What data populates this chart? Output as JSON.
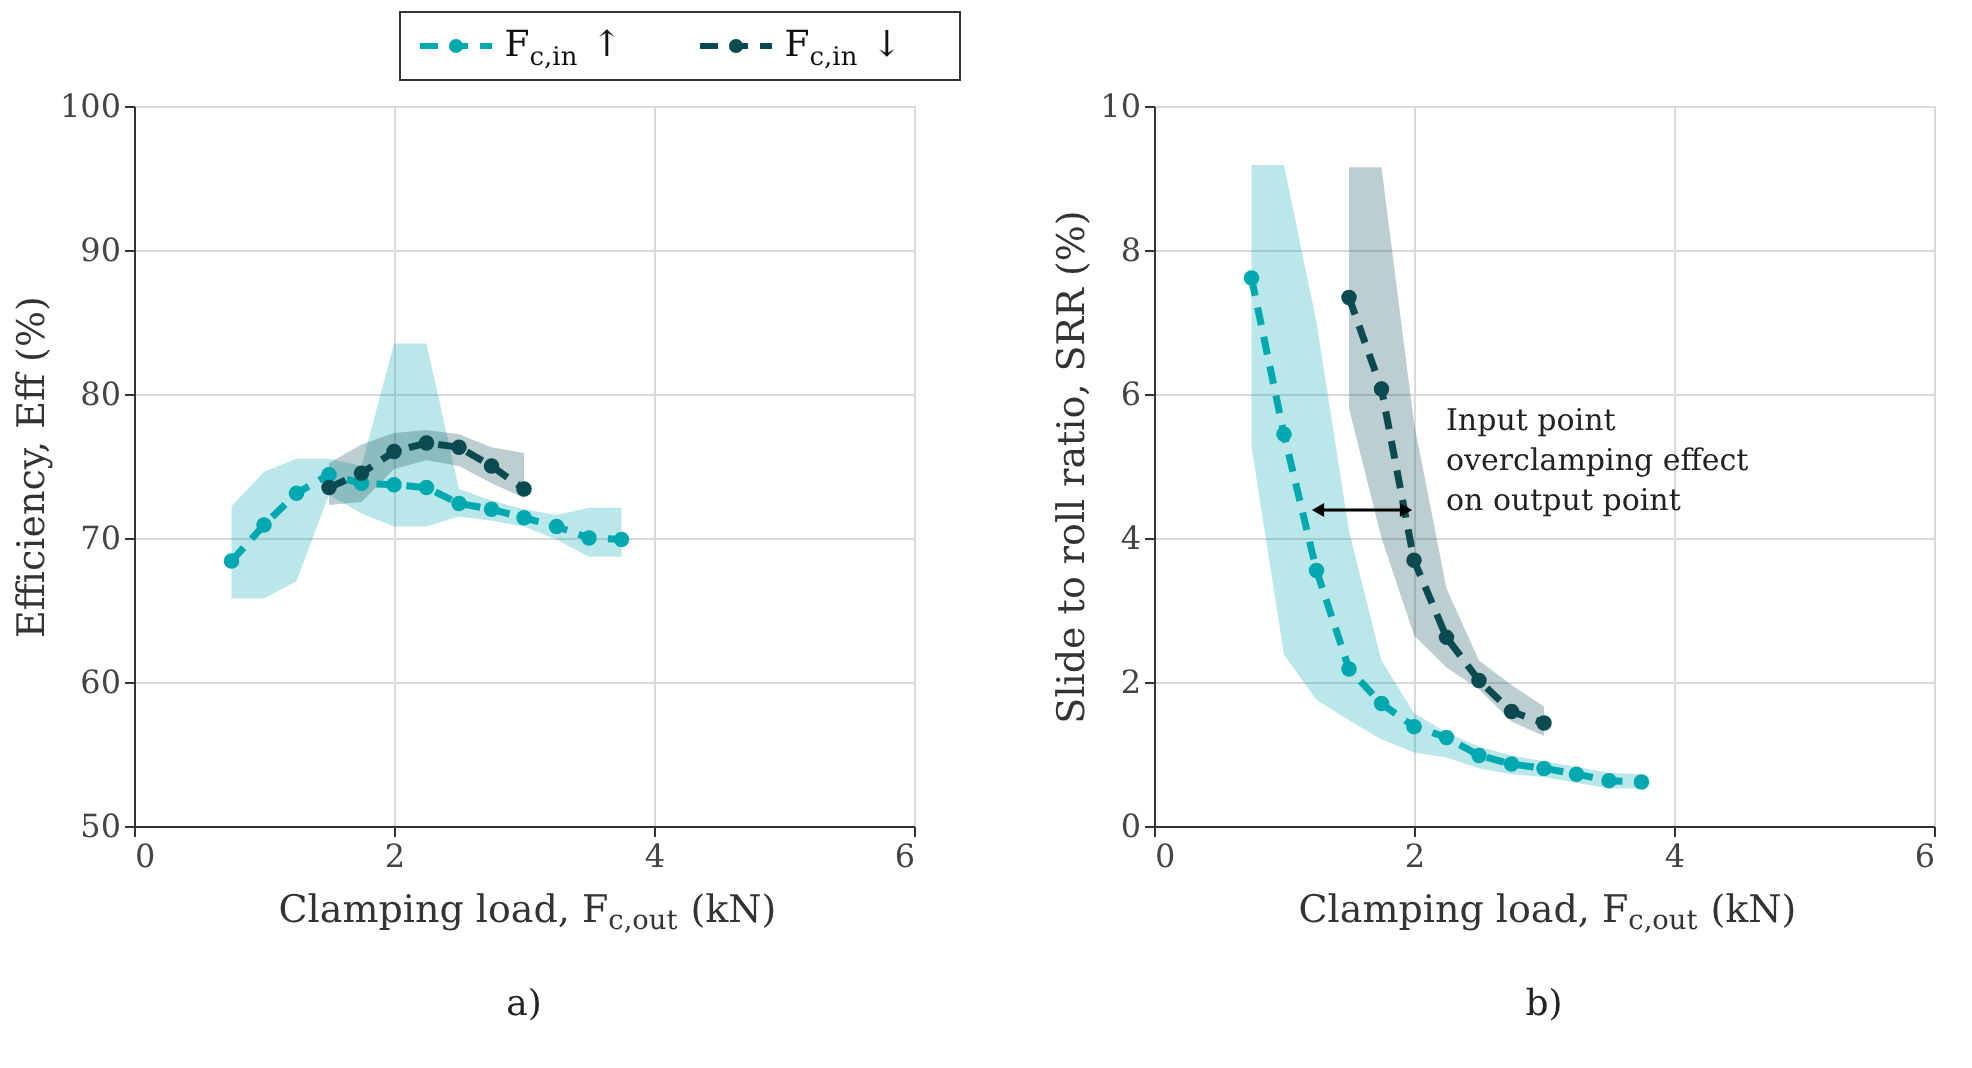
{
  "chart_data": [
    {
      "type": "line",
      "title": "a)",
      "xlabel": "Clamping load, F$_{c,out}$ (kN)",
      "ylabel": "Efficiency, Eff (%)",
      "xlim": [
        0,
        6
      ],
      "xticks": [
        0,
        2,
        4,
        6
      ],
      "ylim": [
        50,
        100
      ],
      "yticks": [
        50,
        60,
        70,
        80,
        90,
        100
      ],
      "grid": true,
      "legend": "top",
      "marker": "circle",
      "line_style": "dashed",
      "series": [
        {
          "name": "F$_{c,in}$↑",
          "color": "#00a8b0",
          "x": [
            0.75,
            1.0,
            1.25,
            1.5,
            1.75,
            2.0,
            2.25,
            2.5,
            2.75,
            3.0,
            3.25,
            3.5,
            3.75
          ],
          "values": [
            68.4,
            70.9,
            73.1,
            74.4,
            73.8,
            73.7,
            73.5,
            72.4,
            72.0,
            71.4,
            70.8,
            70.0,
            69.9
          ],
          "lower": [
            65.8,
            65.8,
            67.0,
            73.0,
            71.7,
            70.8,
            70.8,
            71.5,
            71.2,
            70.8,
            69.9,
            68.7,
            68.7
          ],
          "upper": [
            72.2,
            74.6,
            75.5,
            75.5,
            75.0,
            83.5,
            83.5,
            73.4,
            72.6,
            72.0,
            71.6,
            72.1,
            72.1
          ]
        },
        {
          "name": "F$_{c,in}$↓",
          "color": "#0b4a50",
          "x": [
            1.5,
            1.75,
            2.0,
            2.25,
            2.5,
            2.75,
            3.0
          ],
          "values": [
            73.5,
            74.5,
            76.0,
            76.6,
            76.3,
            75.0,
            73.4
          ],
          "lower": [
            72.3,
            72.5,
            74.8,
            75.4,
            75.0,
            73.8,
            72.8
          ],
          "upper": [
            75.2,
            76.5,
            77.3,
            77.5,
            77.2,
            76.3,
            75.9
          ]
        }
      ]
    },
    {
      "type": "line",
      "title": "b)",
      "xlabel": "Clamping load, F$_{c,out}$ (kN)",
      "ylabel": "Slide to roll ratio, SRR (%)",
      "xlim": [
        0,
        6
      ],
      "xticks": [
        0,
        2,
        4,
        6
      ],
      "ylim": [
        0,
        10
      ],
      "yticks": [
        0,
        2,
        4,
        6,
        8,
        10
      ],
      "grid": true,
      "marker": "circle",
      "line_style": "dashed",
      "annotations": [
        "Input point\noverclamping effect\non output point"
      ],
      "series": [
        {
          "name": "F$_{c,in}$↑",
          "color": "#00a8b0",
          "x": [
            0.75,
            1.0,
            1.25,
            1.5,
            1.75,
            2.0,
            2.25,
            2.5,
            2.75,
            3.0,
            3.25,
            3.5,
            3.75
          ],
          "values": [
            7.61,
            5.44,
            3.55,
            2.18,
            1.7,
            1.38,
            1.23,
            0.98,
            0.86,
            0.8,
            0.72,
            0.63,
            0.61
          ],
          "lower": [
            5.27,
            2.38,
            1.75,
            1.47,
            1.2,
            1.02,
            0.95,
            0.8,
            0.72,
            0.68,
            0.6,
            0.52,
            0.52
          ],
          "upper": [
            9.18,
            9.18,
            7.0,
            4.1,
            2.3,
            1.57,
            1.3,
            1.1,
            0.98,
            0.9,
            0.82,
            0.74,
            0.72
          ]
        },
        {
          "name": "F$_{c,in}$↓",
          "color": "#0b4a50",
          "x": [
            1.5,
            1.75,
            2.0,
            2.25,
            2.5,
            2.75,
            3.0
          ],
          "values": [
            7.34,
            6.07,
            3.69,
            2.62,
            2.02,
            1.59,
            1.43
          ],
          "lower": [
            5.8,
            4.0,
            2.65,
            2.2,
            1.9,
            1.45,
            1.25
          ],
          "upper": [
            9.15,
            9.15,
            5.6,
            3.3,
            2.3,
            1.96,
            1.66
          ]
        }
      ]
    }
  ]
}
